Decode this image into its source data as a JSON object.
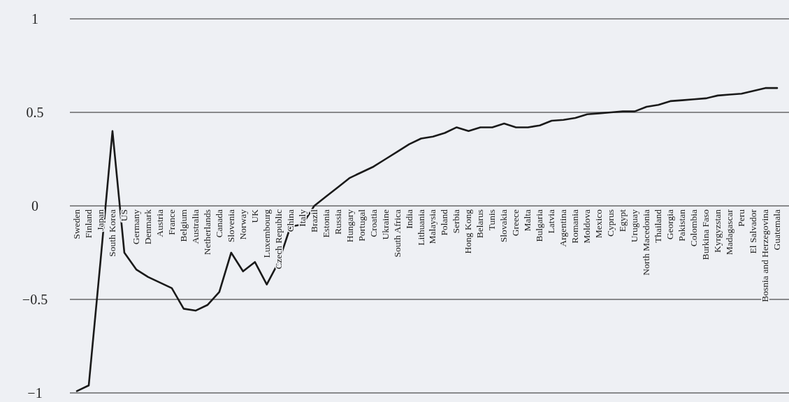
{
  "chart_data": {
    "type": "line",
    "categories": [
      "Sweden",
      "Finland",
      "Japan",
      "South Korea",
      "US",
      "Germany",
      "Denmark",
      "Austria",
      "France",
      "Belgium",
      "Australia",
      "Netherlands",
      "Canada",
      "Slovenia",
      "Norway",
      "UK",
      "Luxembourg",
      "Czech Republic",
      "China",
      "Italy",
      "Brazil",
      "Estonia",
      "Russia",
      "Hungary",
      "Portugal",
      "Croatia",
      "Ukraine",
      "South Africa",
      "India",
      "Lithuania",
      "Malaysia",
      "Poland",
      "Serbia",
      "Hong Kong",
      "Belarus",
      "Tunis",
      "Slovakia",
      "Greece",
      "Malta",
      "Bulgaria",
      "Latvia",
      "Argentina",
      "Romania",
      "Moldova",
      "Mexico",
      "Cyprus",
      "Egypt",
      "Uruguay",
      "North Macedonia",
      "Thailand",
      "Georgia",
      "Pakistan",
      "Colombia",
      "Burkina Faso",
      "Kyrgyzstan",
      "Madagascar",
      "Peru",
      "El Salvador",
      "Bosnia and Herzegovina",
      "Guatemala"
    ],
    "series": [
      {
        "color": "#1a1a1a",
        "values": [
          -0.99,
          -0.96,
          -0.29,
          0.4,
          -0.25,
          -0.34,
          -0.38,
          -0.41,
          -0.44,
          -0.55,
          -0.56,
          -0.53,
          -0.46,
          -0.25,
          -0.35,
          -0.3,
          -0.42,
          -0.3,
          -0.11,
          -0.1,
          0.0,
          0.05,
          0.1,
          0.15,
          0.18,
          0.21,
          0.25,
          0.29,
          0.33,
          0.36,
          0.37,
          0.39,
          0.42,
          0.4,
          0.42,
          0.42,
          0.44,
          0.42,
          0.42,
          0.43,
          0.455,
          0.46,
          0.47,
          0.49,
          0.495,
          0.5,
          0.505,
          0.505,
          0.53,
          0.54,
          0.56,
          0.565,
          0.57,
          0.575,
          0.59,
          0.595,
          0.6,
          0.615,
          0.63,
          0.63
        ]
      }
    ],
    "ylim": [
      -1,
      1
    ],
    "yticks": [
      1,
      0.5,
      0,
      {
        "value": -0.5,
        "label": "−0.5"
      },
      {
        "value": -1,
        "label": "−1"
      }
    ],
    "grid": "y",
    "marker": "none",
    "line_style": "solid"
  }
}
